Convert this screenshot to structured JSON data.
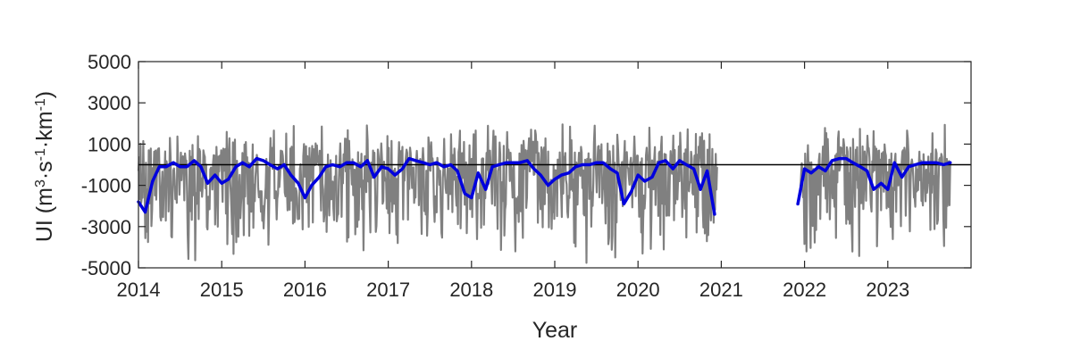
{
  "chart_data": {
    "type": "line",
    "title": "",
    "xlabel": "Year",
    "ylabel": {
      "prefix": "UI (m",
      "sup1": "3",
      "mid1": "·s",
      "sup2": "-1",
      "mid2": "·km",
      "sup3": "-1",
      "suffix": ")"
    },
    "xlim": [
      2014.0,
      2024.0
    ],
    "ylim": [
      -5000,
      5000
    ],
    "x_ticks": [
      2014,
      2015,
      2016,
      2017,
      2018,
      2019,
      2020,
      2021,
      2022,
      2023
    ],
    "y_ticks": [
      5000,
      3000,
      1000,
      -1000,
      -3000,
      -5000
    ],
    "grid": false,
    "zero_line": 0,
    "series": [
      {
        "role": "daily",
        "color": "#808080",
        "segments": [
          {
            "start": 2014.0,
            "end": 2020.95
          },
          {
            "start": 2021.95,
            "end": 2023.75
          }
        ],
        "mean": -300,
        "amplitude_pos": 1600,
        "amplitude_neg": 3200
      },
      {
        "role": "monthly-mean",
        "color": "#0000dd",
        "segments": [
          {
            "x": [
              2014.0,
              2014.08,
              2014.17,
              2014.25,
              2014.33,
              2014.42,
              2014.5,
              2014.58,
              2014.67,
              2014.75,
              2014.83,
              2014.92,
              2015.0,
              2015.08,
              2015.17,
              2015.25,
              2015.33,
              2015.42,
              2015.5,
              2015.58,
              2015.67,
              2015.75,
              2015.83,
              2015.92,
              2016.0,
              2016.08,
              2016.17,
              2016.25,
              2016.33,
              2016.42,
              2016.5,
              2016.58,
              2016.67,
              2016.75,
              2016.83,
              2016.92,
              2017.0,
              2017.08,
              2017.17,
              2017.25,
              2017.33,
              2017.42,
              2017.5,
              2017.58,
              2017.67,
              2017.75,
              2017.83,
              2017.92,
              2018.0,
              2018.08,
              2018.17,
              2018.25,
              2018.33,
              2018.42,
              2018.5,
              2018.58,
              2018.67,
              2018.75,
              2018.83,
              2018.92,
              2019.0,
              2019.08,
              2019.17,
              2019.25,
              2019.33,
              2019.42,
              2019.5,
              2019.58,
              2019.67,
              2019.75,
              2019.83,
              2019.92,
              2020.0,
              2020.08,
              2020.17,
              2020.25,
              2020.33,
              2020.42,
              2020.5,
              2020.58,
              2020.67,
              2020.75,
              2020.83,
              2020.92
            ],
            "y": [
              -1800,
              -2300,
              -800,
              -100,
              -100,
              100,
              -100,
              -100,
              200,
              -100,
              -900,
              -500,
              -900,
              -700,
              -100,
              100,
              -100,
              300,
              200,
              0,
              -200,
              0,
              -500,
              -900,
              -1600,
              -1000,
              -600,
              -100,
              0,
              -100,
              100,
              100,
              -100,
              200,
              -600,
              -100,
              -200,
              -500,
              -200,
              300,
              200,
              100,
              0,
              100,
              -100,
              0,
              -300,
              -1400,
              -1600,
              -400,
              -1200,
              -100,
              0,
              100,
              100,
              100,
              200,
              -200,
              -500,
              -1000,
              -700,
              -500,
              -400,
              -100,
              0,
              0,
              100,
              100,
              -200,
              -400,
              -1900,
              -1300,
              -500,
              -800,
              -600,
              100,
              200,
              -200,
              200,
              0,
              -200,
              -1200,
              -300,
              -2400
            ]
          },
          {
            "x": [
              2021.92,
              2022.0,
              2022.08,
              2022.17,
              2022.25,
              2022.33,
              2022.42,
              2022.5,
              2022.58,
              2022.67,
              2022.75,
              2022.83,
              2022.92,
              2023.0,
              2023.08,
              2023.17,
              2023.25,
              2023.33,
              2023.42,
              2023.5,
              2023.58,
              2023.67,
              2023.75
            ],
            "y": [
              -1900,
              -200,
              -400,
              -100,
              -300,
              200,
              300,
              300,
              100,
              -100,
              -300,
              -1200,
              -900,
              -1200,
              100,
              -600,
              -100,
              0,
              100,
              100,
              100,
              0,
              100
            ]
          }
        ]
      }
    ]
  }
}
